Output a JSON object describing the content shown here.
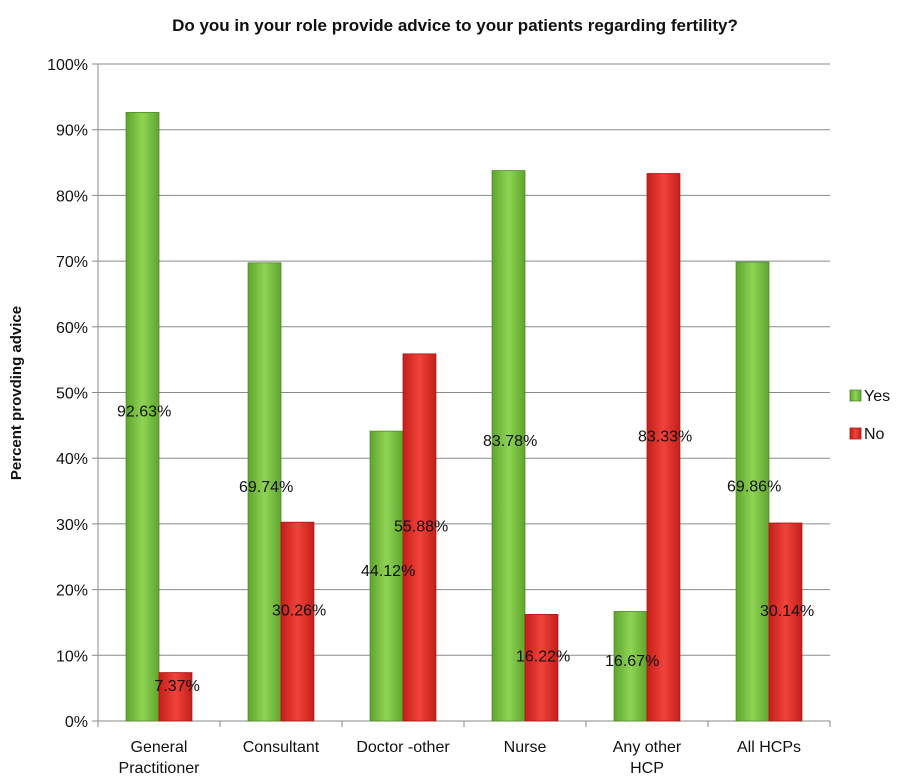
{
  "chart_data": {
    "type": "bar",
    "title": "Do you in your role provide advice to your patients regarding fertility?",
    "xlabel": "",
    "ylabel": "Percent provding advice",
    "ylim": [
      0,
      100
    ],
    "yticks": [
      "0%",
      "10%",
      "20%",
      "30%",
      "40%",
      "50%",
      "60%",
      "70%",
      "80%",
      "90%",
      "100%"
    ],
    "categories": [
      [
        "General",
        "Practitioner"
      ],
      [
        "Consultant"
      ],
      [
        "Doctor -other"
      ],
      [
        "Nurse"
      ],
      [
        "Any other",
        "HCP"
      ],
      [
        "All HCPs"
      ]
    ],
    "series": [
      {
        "name": "Yes",
        "color": "#7cc242",
        "values": [
          92.63,
          69.74,
          44.12,
          83.78,
          16.67,
          69.86
        ],
        "labels": [
          "92.63%",
          "69.74%",
          "44.12%",
          "83.78%",
          "16.67%",
          "69.86%"
        ]
      },
      {
        "name": "No",
        "color": "#e8302a",
        "values": [
          7.37,
          30.26,
          55.88,
          16.22,
          83.33,
          30.14
        ],
        "labels": [
          "7.37%",
          "30.26%",
          "55.88%",
          "16.22%",
          "83.33%",
          "30.14%"
        ]
      }
    ],
    "grid": true,
    "legend": "right"
  }
}
